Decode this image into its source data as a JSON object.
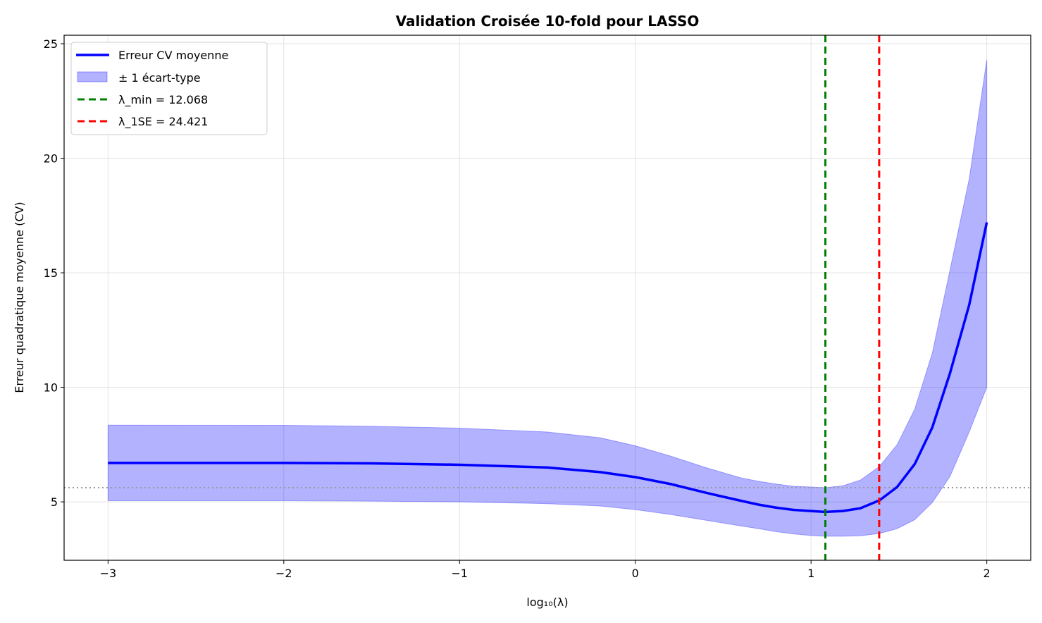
{
  "chart_data": {
    "type": "line",
    "title": "Validation Croisée 10-fold pour LASSO",
    "xlabel": "log₁₀(λ)",
    "ylabel": "Erreur quadratique moyenne (CV)",
    "xlim": [
      -3.25,
      2.25
    ],
    "ylim": [
      2.45,
      25.37
    ],
    "xticks": [
      -3,
      -2,
      -1,
      0,
      1,
      2
    ],
    "xtick_labels": [
      "−3",
      "−2",
      "−1",
      "0",
      "1",
      "2"
    ],
    "yticks": [
      5,
      10,
      15,
      20,
      25
    ],
    "ytick_labels": [
      "5",
      "10",
      "15",
      "20",
      "25"
    ],
    "grid": true,
    "legend_position": "top-left",
    "x": [
      -3,
      -2,
      -1.5,
      -1,
      -0.5,
      -0.2,
      0,
      0.2,
      0.4,
      0.6,
      0.7,
      0.8,
      0.9,
      1.0,
      1.08,
      1.18,
      1.28,
      1.39,
      1.49,
      1.59,
      1.69,
      1.79,
      1.9,
      2.0
    ],
    "series": [
      {
        "name": "Erreur CV moyenne",
        "color": "#0000ff",
        "values": [
          6.7,
          6.7,
          6.68,
          6.62,
          6.5,
          6.3,
          6.08,
          5.78,
          5.4,
          5.05,
          4.88,
          4.75,
          4.65,
          4.6,
          4.56,
          4.6,
          4.72,
          5.07,
          5.65,
          6.65,
          8.25,
          10.6,
          13.6,
          17.2
        ]
      }
    ],
    "band": {
      "name": "± 1 écart-type",
      "color": "#0000ff",
      "upper": [
        8.35,
        8.34,
        8.3,
        8.22,
        8.05,
        7.8,
        7.45,
        7.0,
        6.5,
        6.05,
        5.9,
        5.78,
        5.68,
        5.65,
        5.62,
        5.7,
        5.95,
        6.55,
        7.5,
        9.05,
        11.5,
        15.1,
        19.1,
        24.3
      ],
      "lower": [
        5.05,
        5.05,
        5.03,
        5.0,
        4.92,
        4.82,
        4.66,
        4.45,
        4.2,
        3.95,
        3.83,
        3.7,
        3.6,
        3.53,
        3.5,
        3.5,
        3.52,
        3.62,
        3.83,
        4.22,
        4.97,
        6.1,
        8.05,
        10.0
      ]
    },
    "vlines": [
      {
        "name": "λ_min = 12.068",
        "x": 1.0816,
        "color": "#008000"
      },
      {
        "name": "λ_1SE = 24.421",
        "x": 1.3877,
        "color": "#ff0000"
      }
    ],
    "hline": {
      "y": 5.62,
      "color": "#999999"
    }
  }
}
